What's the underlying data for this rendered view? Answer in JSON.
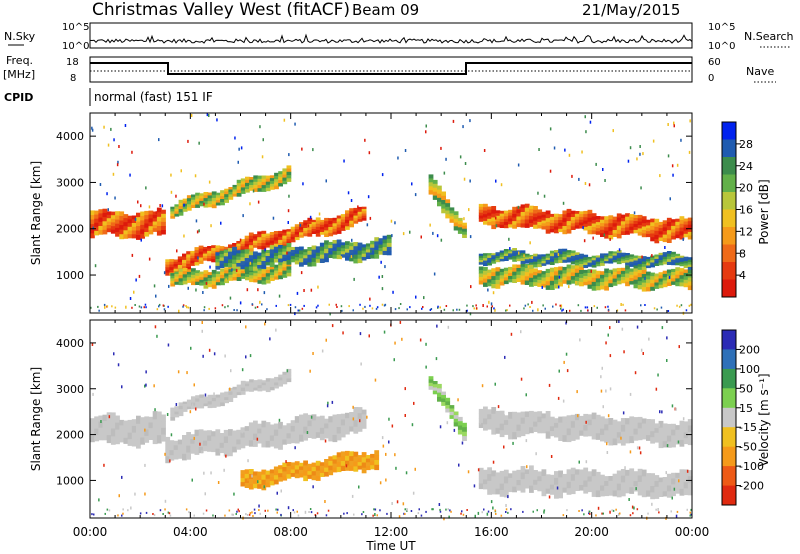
{
  "header": {
    "title": "Christmas Valley West (fitACF)",
    "beam": "Beam 09",
    "date": "21/May/2015"
  },
  "top_panels": {
    "nsky_label": "N.Sky",
    "nsky_ticks": [
      "10^5",
      "10^0"
    ],
    "nsearch_label": "N.Search",
    "freq_label": [
      "Freq.",
      "[MHz]"
    ],
    "freq_ticks": [
      "18",
      "8"
    ],
    "nave_label": "Nave",
    "nave_ticks": [
      "60",
      "0"
    ],
    "cpid_label": "CPID",
    "cpid_text": "normal (fast) 151 IF"
  },
  "power_colorbar": {
    "label": "Power [dB]",
    "ticks": [
      "28",
      "24",
      "20",
      "16",
      "12",
      "8",
      "4"
    ],
    "colors": [
      "#0022ee",
      "#1f5bb0",
      "#3c8c4c",
      "#62b049",
      "#b8c63a",
      "#f0c020",
      "#f59a1a",
      "#ef6a18",
      "#e63a10",
      "#dd1a0c"
    ]
  },
  "velocity_colorbar": {
    "label": "Velocity [m s⁻¹]",
    "ticks": [
      "200",
      "100",
      "50",
      "15",
      "-15",
      "-50",
      "-100",
      "-200"
    ],
    "colors": [
      "#2b2bb5",
      "#2e70b8",
      "#3a9a50",
      "#7cd050",
      "#c8c8c8",
      "#f0c020",
      "#f59a1a",
      "#ee5a16",
      "#e02a10"
    ]
  },
  "chart_data": [
    {
      "type": "heatmap",
      "title": "Power",
      "ylabel": "Slant Range [km]",
      "xlabel": "Time UT",
      "x_ticks": [
        "00:00",
        "04:00",
        "08:00",
        "12:00",
        "16:00",
        "20:00",
        "00:00"
      ],
      "y_ticks": [
        1000,
        2000,
        3000,
        4000
      ],
      "ylim": [
        180,
        4500
      ],
      "xlim_hours": [
        0,
        24
      ],
      "bands": [
        {
          "t": [
            0,
            3
          ],
          "center_km": [
            2100,
            2100
          ],
          "width_km": 500,
          "level": "high"
        },
        {
          "t": [
            3,
            11
          ],
          "center_km": [
            1200,
            2300
          ],
          "width_km": 350,
          "level": "high"
        },
        {
          "t": [
            3.2,
            8
          ],
          "center_km": [
            2400,
            3200
          ],
          "width_km": 300,
          "level": "medium"
        },
        {
          "t": [
            3.2,
            8
          ],
          "center_km": [
            900,
            1100
          ],
          "width_km": 350,
          "level": "medium"
        },
        {
          "t": [
            5,
            12
          ],
          "center_km": [
            1300,
            1600
          ],
          "width_km": 400,
          "level": "low"
        },
        {
          "t": [
            13.5,
            15
          ],
          "center_km": [
            2900,
            1900
          ],
          "width_km": 400,
          "level": "medium"
        },
        {
          "t": [
            15.5,
            24
          ],
          "center_km": [
            2300,
            1950
          ],
          "width_km": 450,
          "level": "high"
        },
        {
          "t": [
            15.5,
            24
          ],
          "center_km": [
            1000,
            900
          ],
          "width_km": 400,
          "level": "medium"
        },
        {
          "t": [
            15.5,
            24
          ],
          "center_km": [
            1400,
            1300
          ],
          "width_km": 250,
          "level": "low"
        }
      ]
    },
    {
      "type": "heatmap",
      "title": "Velocity",
      "ylabel": "Slant Range [km]",
      "xlabel": "Time UT",
      "x_ticks": [
        "00:00",
        "04:00",
        "08:00",
        "12:00",
        "16:00",
        "20:00",
        "00:00"
      ],
      "y_ticks": [
        1000,
        2000,
        3000,
        4000
      ],
      "ylim": [
        180,
        4500
      ],
      "xlim_hours": [
        0,
        24
      ],
      "bands": [
        {
          "t": [
            0,
            3
          ],
          "center_km": [
            2100,
            2100
          ],
          "width_km": 600,
          "level": "ground"
        },
        {
          "t": [
            3,
            11
          ],
          "center_km": [
            1700,
            2300
          ],
          "width_km": 500,
          "level": "ground"
        },
        {
          "t": [
            3.2,
            8
          ],
          "center_km": [
            2500,
            3300
          ],
          "width_km": 250,
          "level": "ground"
        },
        {
          "t": [
            6,
            11.5
          ],
          "center_km": [
            1000,
            1500
          ],
          "width_km": 380,
          "level": "negative"
        },
        {
          "t": [
            13.5,
            15
          ],
          "center_km": [
            3100,
            2000
          ],
          "width_km": 350,
          "level": "positive"
        },
        {
          "t": [
            15.5,
            24
          ],
          "center_km": [
            2300,
            2000
          ],
          "width_km": 500,
          "level": "ground"
        },
        {
          "t": [
            15.5,
            24
          ],
          "center_km": [
            1000,
            900
          ],
          "width_km": 500,
          "level": "ground"
        }
      ]
    }
  ],
  "xaxis": {
    "label": "Time UT",
    "ticks": [
      "00:00",
      "04:00",
      "08:00",
      "12:00",
      "16:00",
      "20:00",
      "00:00"
    ]
  }
}
